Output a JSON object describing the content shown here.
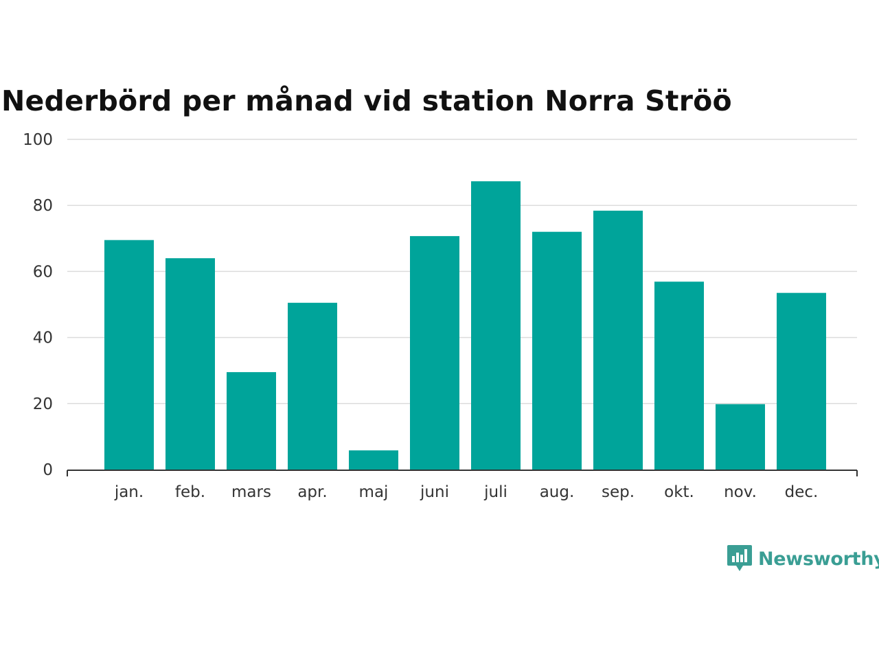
{
  "chart_data": {
    "type": "bar",
    "title": "Nederbörd per månad vid station Norra Ströö",
    "categories": [
      "jan.",
      "feb.",
      "mars",
      "apr.",
      "maj",
      "juni",
      "juli",
      "aug.",
      "sep.",
      "okt.",
      "nov.",
      "dec."
    ],
    "values": [
      69.5,
      64,
      29.5,
      50.5,
      5.8,
      70.7,
      87.3,
      72,
      78.4,
      56.9,
      19.8,
      53.5
    ],
    "ylim": [
      0,
      100
    ],
    "yticks": [
      0,
      20,
      40,
      60,
      80,
      100
    ],
    "grid": true,
    "bar_color": "#00a49a",
    "xlabel": "",
    "ylabel": ""
  },
  "brand": {
    "name": "Newsworthy",
    "icon": "newsworthy-logo-icon",
    "color": "#3a9e94"
  }
}
